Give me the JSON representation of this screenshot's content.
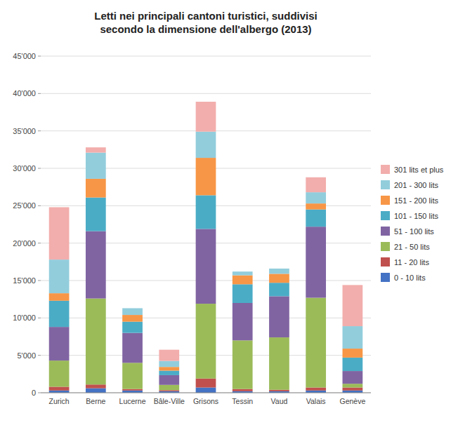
{
  "chart_data": {
    "type": "bar",
    "stacked": true,
    "title": "Letti nei principali cantoni turistici, suddivisi\nsecondo la dimensione dell'albergo (2013)",
    "categories": [
      "Zurich",
      "Berne",
      "Lucerne",
      "Bâle-Ville",
      "Grisons",
      "Tessin",
      "Vaud",
      "Valais",
      "Genève"
    ],
    "series": [
      {
        "name": "0 - 10 lits",
        "color": "#4472c4",
        "values": [
          300,
          600,
          300,
          200,
          700,
          200,
          200,
          300,
          300
        ]
      },
      {
        "name": "11 - 20 lits",
        "color": "#c0504d",
        "values": [
          500,
          500,
          200,
          150,
          1200,
          300,
          200,
          400,
          400
        ]
      },
      {
        "name": "21 - 50 lits",
        "color": "#9bbb59",
        "values": [
          3500,
          11500,
          3500,
          700,
          10000,
          6500,
          7000,
          12000,
          500
        ]
      },
      {
        "name": "51 - 100 lits",
        "color": "#8064a2",
        "values": [
          4500,
          9000,
          4000,
          1300,
          10000,
          5000,
          5500,
          9500,
          1700
        ]
      },
      {
        "name": "101 - 150 lits",
        "color": "#4bacc6",
        "values": [
          3500,
          4500,
          1500,
          600,
          4500,
          2500,
          1800,
          2300,
          1800
        ]
      },
      {
        "name": "151 - 200 lits",
        "color": "#f79646",
        "values": [
          1000,
          2500,
          900,
          500,
          5000,
          1200,
          1200,
          800,
          1200
        ]
      },
      {
        "name": "201 - 300 lits",
        "color": "#92cddc",
        "values": [
          4500,
          3500,
          900,
          800,
          3500,
          500,
          700,
          1500,
          3000
        ]
      },
      {
        "name": "301 lits et plus",
        "color": "#f2aeac",
        "values": [
          7000,
          700,
          0,
          1500,
          4000,
          0,
          0,
          2000,
          5500
        ]
      }
    ],
    "ylim": [
      0,
      45000
    ],
    "yticks": [
      0,
      {
        "value": 5000,
        "label": "5'000"
      },
      {
        "value": 10000,
        "label": "10'000"
      },
      {
        "value": 15000,
        "label": "15'000"
      },
      {
        "value": 20000,
        "label": "20'000"
      },
      {
        "value": 25000,
        "label": "25'000"
      },
      {
        "value": 30000,
        "label": "30'000"
      },
      {
        "value": 35000,
        "label": "35'000"
      },
      {
        "value": 40000,
        "label": "40'000"
      },
      {
        "value": 45000,
        "label": "45'000"
      }
    ],
    "grid": true,
    "legend": "right"
  }
}
